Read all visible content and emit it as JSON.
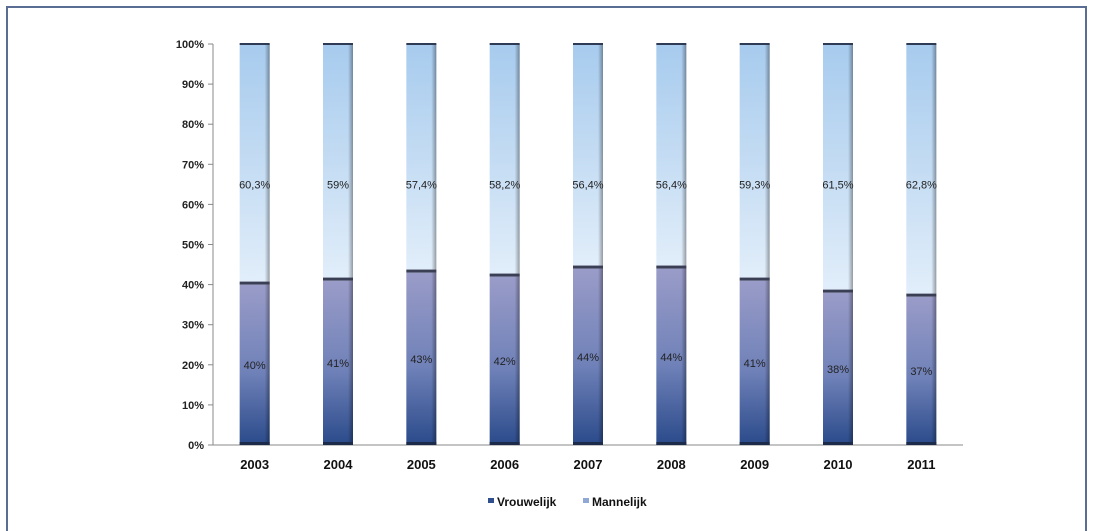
{
  "chart_data": {
    "type": "bar",
    "stacked": true,
    "percent": true,
    "categories": [
      "2003",
      "2004",
      "2005",
      "2006",
      "2007",
      "2008",
      "2009",
      "2010",
      "2011"
    ],
    "series": [
      {
        "name": "Vrouwelijk",
        "values": [
          40,
          41,
          43,
          42,
          44,
          44,
          41,
          38,
          37
        ],
        "labels": [
          "40%",
          "41%",
          "43%",
          "42%",
          "44%",
          "44%",
          "41%",
          "38%",
          "37%"
        ],
        "color": "#2f4f8f"
      },
      {
        "name": "Mannelijk",
        "values": [
          60.3,
          59,
          57.4,
          58.2,
          56.4,
          56.4,
          59.3,
          61.5,
          62.8
        ],
        "labels": [
          "60,3%",
          "59%",
          "57,4%",
          "58,2%",
          "56,4%",
          "56,4%",
          "59,3%",
          "61,5%",
          "62,8%"
        ],
        "color": "#a9cdef"
      }
    ],
    "yticks": [
      "0%",
      "10%",
      "20%",
      "30%",
      "40%",
      "50%",
      "60%",
      "70%",
      "80%",
      "90%",
      "100%"
    ],
    "ylim": [
      0,
      100
    ],
    "legend_position": "bottom",
    "grid": false
  }
}
